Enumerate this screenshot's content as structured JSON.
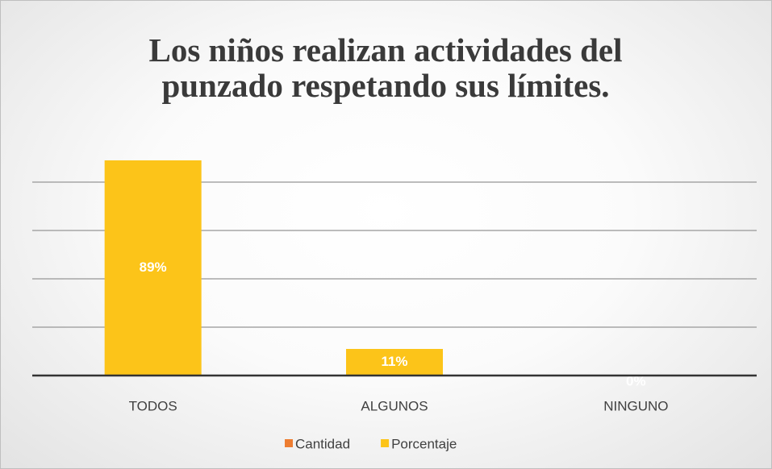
{
  "chart_data": {
    "type": "bar",
    "title": "Los niños realizan actividades del punzado respetando sus límites.",
    "categories": [
      "TODOS",
      "ALGUNOS",
      "NINGUNO"
    ],
    "series": [
      {
        "name": "Cantidad",
        "color": "#ed7d31",
        "values": [
          null,
          null,
          null
        ]
      },
      {
        "name": "Porcentaje",
        "color": "#fcc419",
        "values": [
          89,
          11,
          0
        ],
        "value_labels": [
          "89%",
          "11%",
          "0%"
        ]
      }
    ],
    "ylim": [
      0,
      90
    ],
    "yticks": [
      0,
      20,
      40,
      60,
      80
    ],
    "grid": true,
    "legend": "bottom"
  }
}
